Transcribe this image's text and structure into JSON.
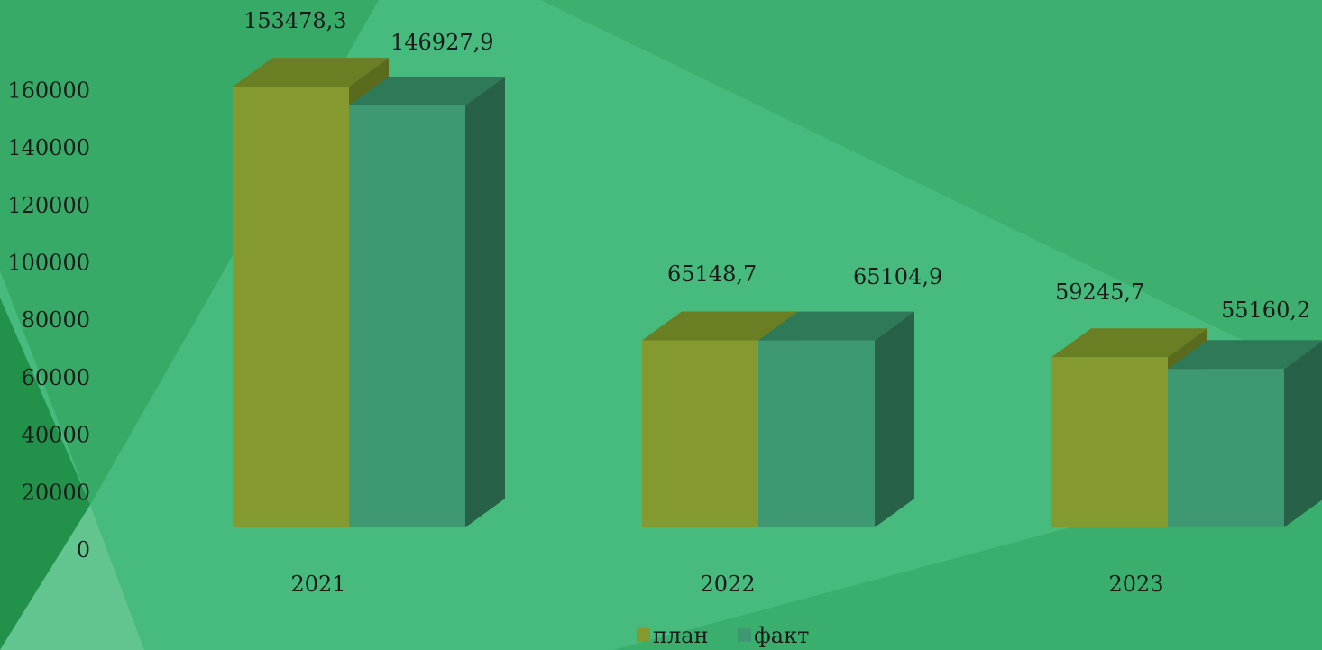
{
  "chart_data": {
    "type": "bar",
    "title": "",
    "xlabel": "",
    "ylabel": "",
    "categories": [
      "2021",
      "2022",
      "2023"
    ],
    "series": [
      {
        "name": "план",
        "values": [
          153478.3,
          65148.7,
          59245.7
        ],
        "labels": [
          "153478,3",
          "65148,7",
          "59245,7"
        ]
      },
      {
        "name": "факт",
        "values": [
          146927.9,
          65104.9,
          55160.2
        ],
        "labels": [
          "146927,9",
          "65104,9",
          "55160,2"
        ]
      }
    ],
    "yticks": [
      "0",
      "20000",
      "40000",
      "60000",
      "80000",
      "100000",
      "120000",
      "140000",
      "160000"
    ],
    "ylim": [
      0,
      160000
    ],
    "grid": false,
    "legend_position": "bottom",
    "style": "3d",
    "colors": {
      "plan_front": "#849a2e",
      "plan_top": "#6a7f24",
      "plan_side": "#5a6b1e",
      "fact_front": "#3e9872",
      "fact_top": "#2e7a58",
      "fact_side": "#266148",
      "background": "#3aae6c"
    }
  }
}
